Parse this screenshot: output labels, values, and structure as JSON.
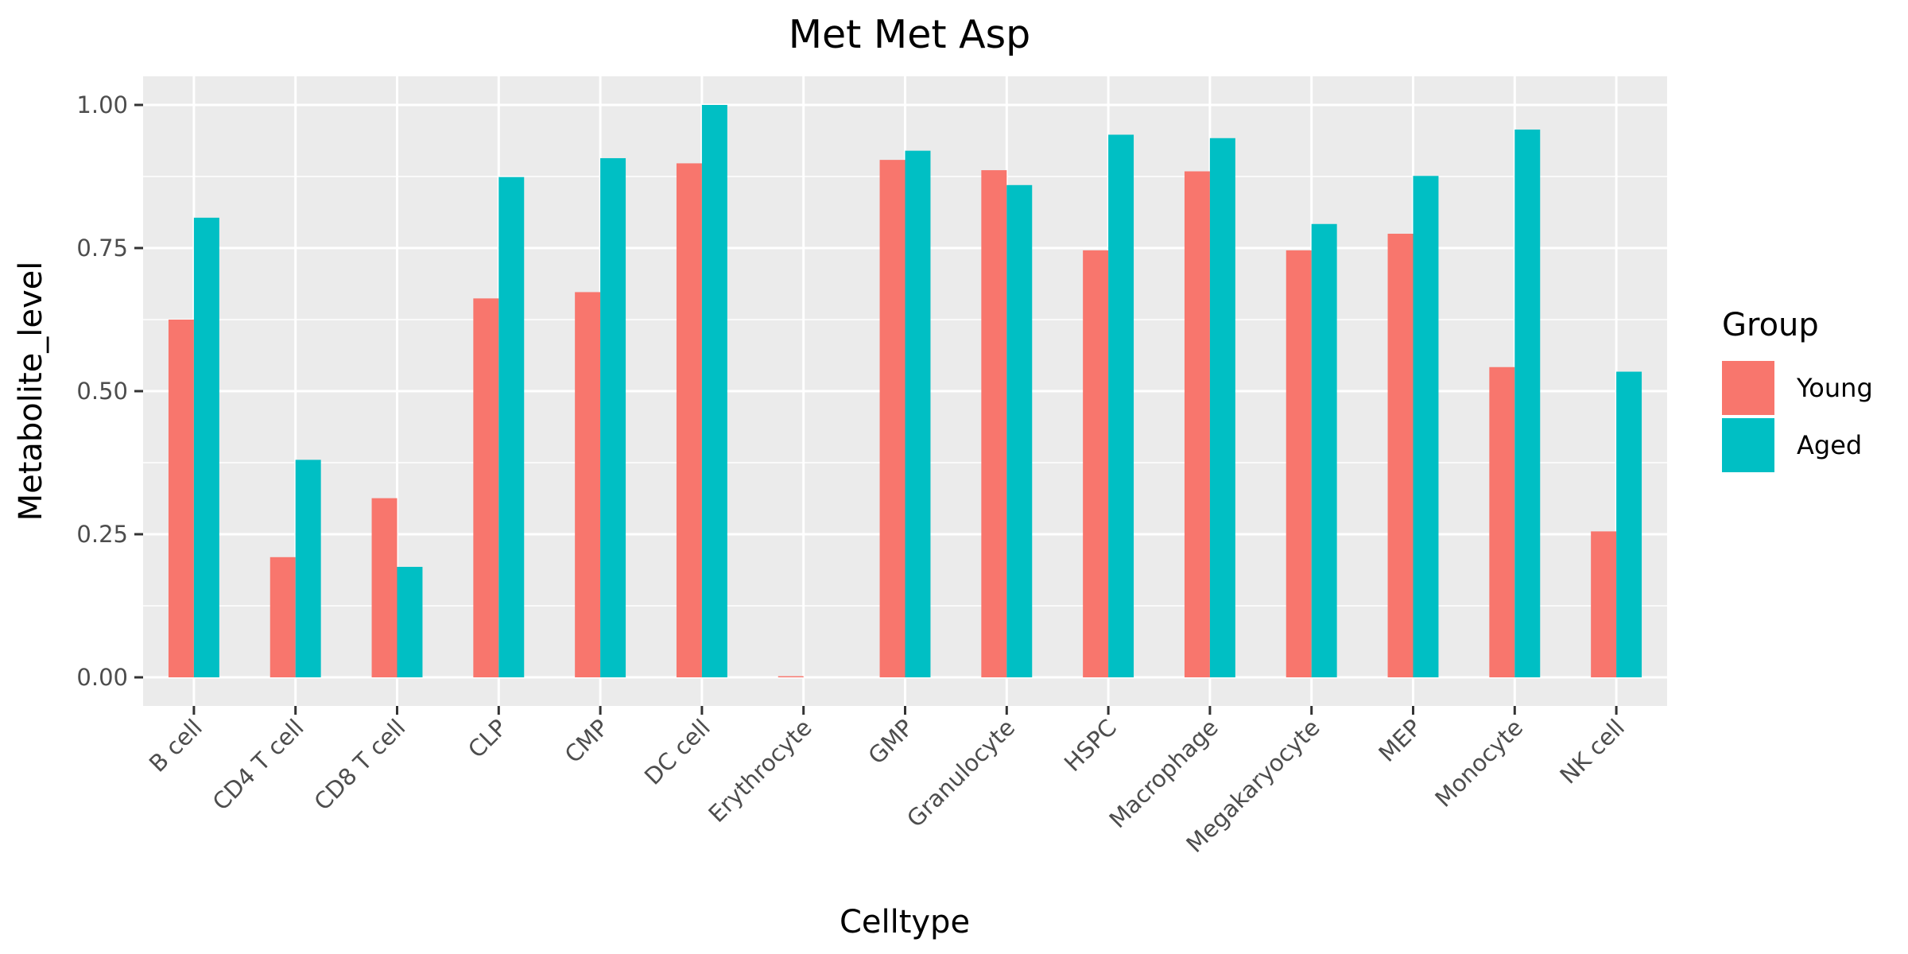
{
  "chart_data": {
    "type": "bar",
    "title": "Met Met Asp",
    "xlabel": "Celltype",
    "ylabel": "Metabolite_level",
    "ylim": [
      -0.05,
      1.05
    ],
    "yticks": [
      "0.00",
      "0.25",
      "0.50",
      "0.75",
      "1.00"
    ],
    "grid": true,
    "legend": {
      "title": "Group",
      "placement": "right"
    },
    "categories": [
      "B cell",
      "CD4 T cell",
      "CD8 T cell",
      "CLP",
      "CMP",
      "DC cell",
      "Erythrocyte",
      "GMP",
      "Granulocyte",
      "HSPC",
      "Macrophage",
      "Megakaryocyte",
      "MEP",
      "Monocyte",
      "NK cell"
    ],
    "series": [
      {
        "name": "Young",
        "color": "#F8766D",
        "values": [
          0.625,
          0.21,
          0.313,
          0.662,
          0.673,
          0.898,
          0.002,
          0.904,
          0.886,
          0.746,
          0.884,
          0.746,
          0.775,
          0.542,
          0.255
        ]
      },
      {
        "name": "Aged",
        "color": "#00BFC4",
        "values": [
          0.803,
          0.38,
          0.193,
          0.874,
          0.907,
          1.0,
          0.0,
          0.92,
          0.86,
          0.948,
          0.942,
          0.792,
          0.876,
          0.957,
          0.534
        ]
      }
    ]
  }
}
